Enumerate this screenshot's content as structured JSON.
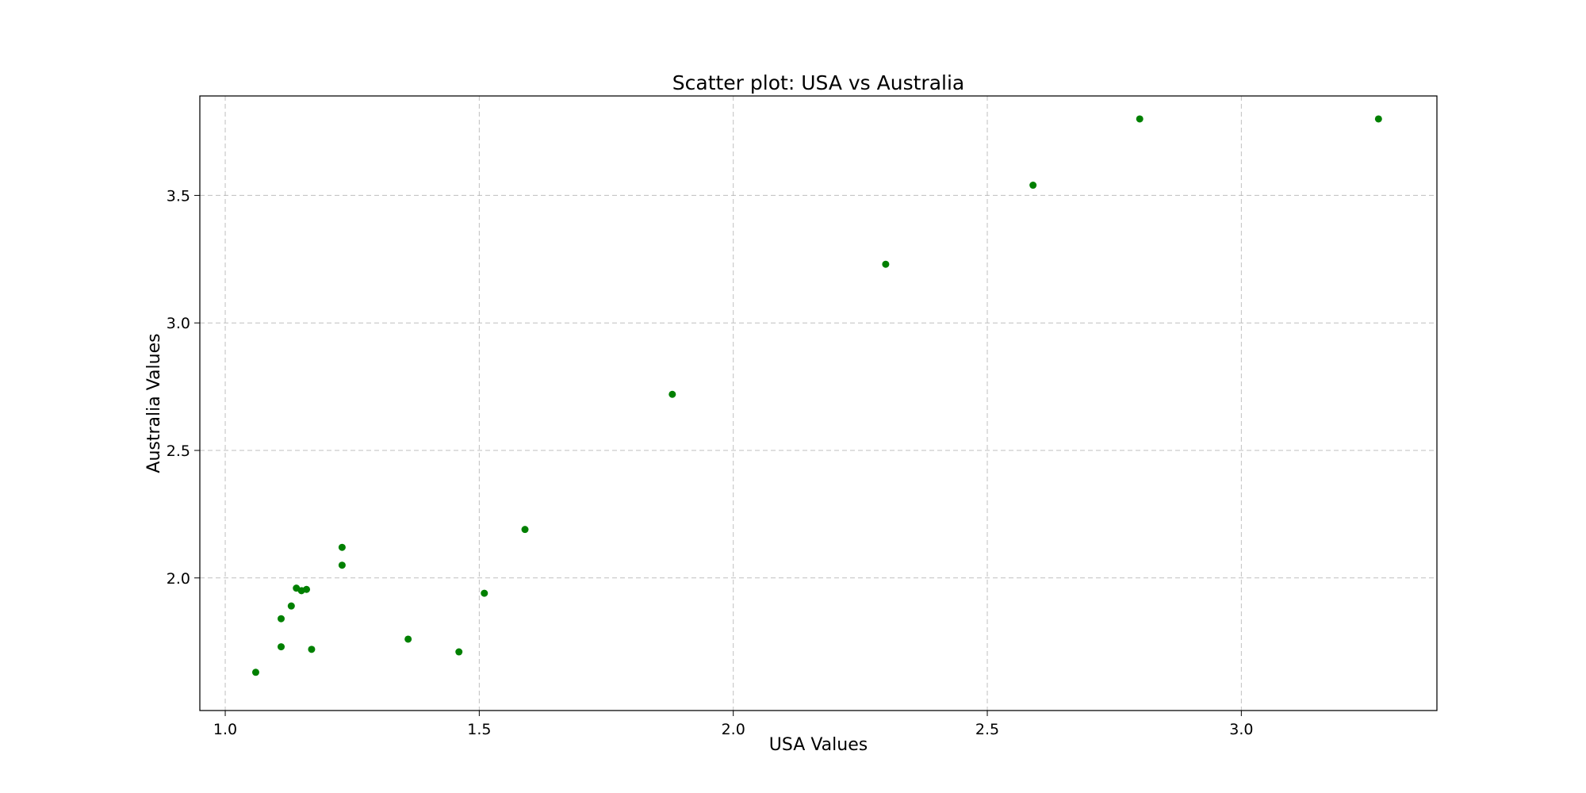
{
  "chart_data": {
    "type": "scatter",
    "title": "Scatter plot: USA vs Australia",
    "xlabel": "USA Values",
    "ylabel": "Australia Values",
    "xlim": [
      0.95,
      3.385
    ],
    "ylim": [
      1.48,
      3.89
    ],
    "xticks": [
      1.0,
      1.5,
      2.0,
      2.5,
      3.0
    ],
    "xtick_labels": [
      "1.0",
      "1.5",
      "2.0",
      "2.5",
      "3.0"
    ],
    "yticks": [
      2.0,
      2.5,
      3.0,
      3.5
    ],
    "ytick_labels": [
      "2.0",
      "2.5",
      "3.0",
      "3.5"
    ],
    "grid": true,
    "marker_color": "#008000",
    "points": [
      {
        "x": 1.06,
        "y": 1.63
      },
      {
        "x": 1.11,
        "y": 1.73
      },
      {
        "x": 1.11,
        "y": 1.84
      },
      {
        "x": 1.13,
        "y": 1.89
      },
      {
        "x": 1.14,
        "y": 1.96
      },
      {
        "x": 1.15,
        "y": 1.95
      },
      {
        "x": 1.16,
        "y": 1.955
      },
      {
        "x": 1.17,
        "y": 1.72
      },
      {
        "x": 1.23,
        "y": 2.12
      },
      {
        "x": 1.23,
        "y": 2.05
      },
      {
        "x": 1.36,
        "y": 1.76
      },
      {
        "x": 1.46,
        "y": 1.71
      },
      {
        "x": 1.51,
        "y": 1.94
      },
      {
        "x": 1.59,
        "y": 2.19
      },
      {
        "x": 1.88,
        "y": 2.72
      },
      {
        "x": 2.3,
        "y": 3.23
      },
      {
        "x": 2.59,
        "y": 3.54
      },
      {
        "x": 2.8,
        "y": 3.8
      },
      {
        "x": 3.27,
        "y": 3.8
      }
    ]
  }
}
